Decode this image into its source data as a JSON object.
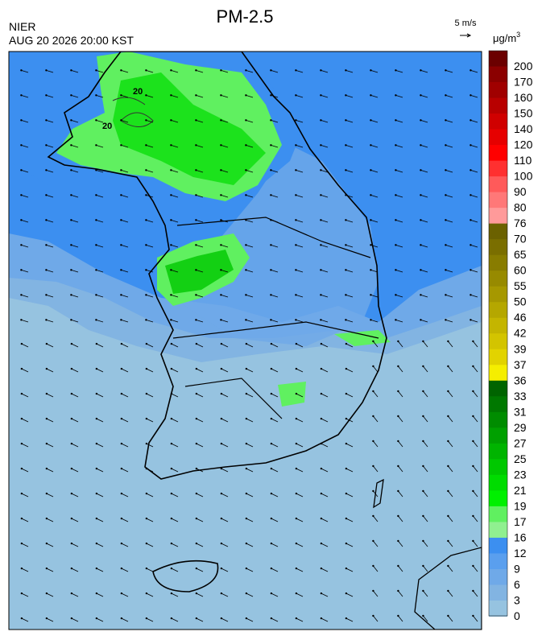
{
  "header": {
    "title": "PM-2.5",
    "agency": "NIER",
    "timestamp": "AUG 20 2026 20:00 KST",
    "wind_scale": "5 m/s"
  },
  "map": {
    "contour_labels": [
      "20",
      "20"
    ]
  },
  "colorbar": {
    "unit": "μg/m",
    "unit_exponent": "3",
    "labels": [
      200,
      170,
      160,
      150,
      140,
      120,
      110,
      100,
      90,
      80,
      76,
      70,
      65,
      60,
      55,
      50,
      46,
      42,
      39,
      37,
      36,
      33,
      31,
      29,
      27,
      25,
      23,
      21,
      19,
      17,
      16,
      12,
      9,
      6,
      3,
      0
    ],
    "colors": [
      "#6b0000",
      "#8b0000",
      "#a00000",
      "#b80000",
      "#d00000",
      "#e60000",
      "#ff0000",
      "#ff3030",
      "#ff5a5a",
      "#ff7878",
      "#ff9a9a",
      "#6b6100",
      "#7a6e00",
      "#887c00",
      "#978a00",
      "#a69800",
      "#b5a700",
      "#c4b500",
      "#d3c400",
      "#e2d300",
      "#f5ee00",
      "#006400",
      "#007800",
      "#008c00",
      "#00a000",
      "#00b400",
      "#00c800",
      "#00dc00",
      "#00f000",
      "#60f060",
      "#90f090",
      "#3c8ff0",
      "#5a9fee",
      "#6fa9e8",
      "#82b4e2",
      "#96c3e0"
    ]
  }
}
